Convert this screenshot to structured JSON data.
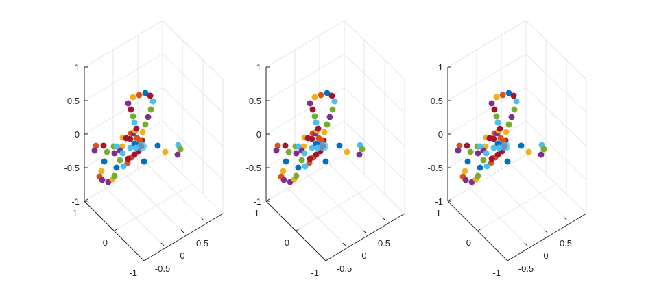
{
  "chart_data": [
    {
      "type": "scatter",
      "title": "",
      "xlabel": "",
      "ylabel": "",
      "zlabel": "",
      "z_ticks": [
        "1",
        "0.5",
        "0",
        "-0.5",
        "-1"
      ],
      "y_ticks": [
        "1",
        "0",
        "-1"
      ],
      "x_ticks": [
        "-0.5",
        "0",
        "0.5"
      ],
      "grid": true,
      "colors": [
        "#0072BD",
        "#D95319",
        "#EDB120",
        "#7E2F8E",
        "#77AC30",
        "#4DBEEE",
        "#A2142F"
      ],
      "points": [
        {
          "x": 110,
          "y": 113,
          "c": 1
        },
        {
          "x": 121,
          "y": 113,
          "c": 6
        },
        {
          "x": 108,
          "y": 120,
          "c": 3
        },
        {
          "x": 126,
          "y": 122,
          "c": 4
        },
        {
          "x": 136,
          "y": 114,
          "c": 4
        },
        {
          "x": 137,
          "y": 124,
          "c": 3
        },
        {
          "x": 148,
          "y": 114,
          "c": 2
        },
        {
          "x": 145,
          "y": 120,
          "c": 3
        },
        {
          "x": 122,
          "y": 136,
          "c": 0
        },
        {
          "x": 156,
          "y": 138,
          "c": 1
        },
        {
          "x": 180,
          "y": 136,
          "c": 0
        },
        {
          "x": 200,
          "y": 113,
          "c": 0
        },
        {
          "x": 211,
          "y": 122,
          "c": 2
        },
        {
          "x": 230,
          "y": 112,
          "c": 5
        },
        {
          "x": 233,
          "y": 118,
          "c": 4
        },
        {
          "x": 229,
          "y": 126,
          "c": 3
        },
        {
          "x": 149,
          "y": 124,
          "c": 5
        },
        {
          "x": 160,
          "y": 116,
          "c": 5
        },
        {
          "x": 162,
          "y": 130,
          "c": 1
        },
        {
          "x": 171,
          "y": 111,
          "c": 0
        },
        {
          "x": 172,
          "y": 121,
          "c": 6
        },
        {
          "x": 166,
          "y": 126,
          "c": 6
        },
        {
          "x": 157,
          "y": 132,
          "c": 6
        },
        {
          "x": 145,
          "y": 134,
          "c": 4
        },
        {
          "x": 150,
          "y": 143,
          "c": 5
        },
        {
          "x": 140,
          "y": 145,
          "c": 0
        },
        {
          "x": 118,
          "y": 150,
          "c": 2
        },
        {
          "x": 115,
          "y": 158,
          "c": 1
        },
        {
          "x": 119,
          "y": 163,
          "c": 3
        },
        {
          "x": 128,
          "y": 166,
          "c": 3
        },
        {
          "x": 134,
          "y": 162,
          "c": 2
        },
        {
          "x": 137,
          "y": 157,
          "c": 4
        },
        {
          "x": 149,
          "y": 101,
          "c": 2
        },
        {
          "x": 154,
          "y": 102,
          "c": 6
        },
        {
          "x": 160,
          "y": 103,
          "c": 6
        },
        {
          "x": 161,
          "y": 95,
          "c": 1
        },
        {
          "x": 166,
          "y": 110,
          "c": 0
        },
        {
          "x": 165,
          "y": 95,
          "c": 3
        },
        {
          "x": 167,
          "y": 91,
          "c": 2
        },
        {
          "x": 170,
          "y": 102,
          "c": 1
        },
        {
          "x": 177,
          "y": 105,
          "c": 6
        },
        {
          "x": 169,
          "y": 88,
          "c": 6
        },
        {
          "x": 166,
          "y": 79,
          "c": 5
        },
        {
          "x": 164,
          "y": 70,
          "c": 4
        },
        {
          "x": 161,
          "y": 60,
          "c": 6
        },
        {
          "x": 157,
          "y": 51,
          "c": 3
        },
        {
          "x": 164,
          "y": 42,
          "c": 2
        },
        {
          "x": 173,
          "y": 39,
          "c": 1
        },
        {
          "x": 182,
          "y": 36,
          "c": 0
        },
        {
          "x": 189,
          "y": 40,
          "c": 6
        },
        {
          "x": 193,
          "y": 48,
          "c": 5
        },
        {
          "x": 190,
          "y": 60,
          "c": 4
        },
        {
          "x": 186,
          "y": 71,
          "c": 3
        },
        {
          "x": 182,
          "y": 82,
          "c": 4
        },
        {
          "x": 178,
          "y": 93,
          "c": 2
        },
        {
          "x": 174,
          "y": 105,
          "c": 1
        },
        {
          "x": 168,
          "y": 116,
          "c": 5
        },
        {
          "x": 176,
          "y": 114,
          "c": 6
        },
        {
          "x": 140,
          "y": 114,
          "c": 5
        }
      ]
    },
    {
      "type": "scatter",
      "title": "",
      "xlabel": "",
      "ylabel": "",
      "zlabel": "",
      "z_ticks": [
        "1",
        "0.5",
        "0",
        "-0.5",
        "-1"
      ],
      "y_ticks": [
        "1",
        "0",
        "-1"
      ],
      "x_ticks": [
        "-0.5",
        "0",
        "0.5"
      ],
      "grid": true,
      "colors": [
        "#0072BD",
        "#D95319",
        "#EDB120",
        "#7E2F8E",
        "#77AC30",
        "#4DBEEE",
        "#A2142F"
      ],
      "points": [
        {
          "x": 110,
          "y": 113,
          "c": 1
        },
        {
          "x": 121,
          "y": 113,
          "c": 6
        },
        {
          "x": 108,
          "y": 120,
          "c": 3
        },
        {
          "x": 126,
          "y": 122,
          "c": 4
        },
        {
          "x": 136,
          "y": 114,
          "c": 4
        },
        {
          "x": 137,
          "y": 124,
          "c": 3
        },
        {
          "x": 148,
          "y": 114,
          "c": 2
        },
        {
          "x": 145,
          "y": 120,
          "c": 3
        },
        {
          "x": 122,
          "y": 136,
          "c": 0
        },
        {
          "x": 156,
          "y": 138,
          "c": 1
        },
        {
          "x": 180,
          "y": 136,
          "c": 0
        },
        {
          "x": 200,
          "y": 113,
          "c": 0
        },
        {
          "x": 211,
          "y": 122,
          "c": 2
        },
        {
          "x": 230,
          "y": 112,
          "c": 5
        },
        {
          "x": 233,
          "y": 118,
          "c": 4
        },
        {
          "x": 229,
          "y": 126,
          "c": 3
        },
        {
          "x": 149,
          "y": 124,
          "c": 5
        },
        {
          "x": 160,
          "y": 116,
          "c": 5
        },
        {
          "x": 162,
          "y": 130,
          "c": 1
        },
        {
          "x": 171,
          "y": 111,
          "c": 0
        },
        {
          "x": 172,
          "y": 121,
          "c": 6
        },
        {
          "x": 166,
          "y": 126,
          "c": 6
        },
        {
          "x": 157,
          "y": 132,
          "c": 6
        },
        {
          "x": 145,
          "y": 134,
          "c": 4
        },
        {
          "x": 150,
          "y": 143,
          "c": 5
        },
        {
          "x": 140,
          "y": 145,
          "c": 0
        },
        {
          "x": 118,
          "y": 150,
          "c": 2
        },
        {
          "x": 115,
          "y": 158,
          "c": 1
        },
        {
          "x": 119,
          "y": 163,
          "c": 3
        },
        {
          "x": 128,
          "y": 166,
          "c": 3
        },
        {
          "x": 134,
          "y": 162,
          "c": 2
        },
        {
          "x": 137,
          "y": 157,
          "c": 4
        },
        {
          "x": 149,
          "y": 101,
          "c": 2
        },
        {
          "x": 154,
          "y": 102,
          "c": 6
        },
        {
          "x": 160,
          "y": 103,
          "c": 6
        },
        {
          "x": 161,
          "y": 95,
          "c": 1
        },
        {
          "x": 166,
          "y": 110,
          "c": 0
        },
        {
          "x": 165,
          "y": 95,
          "c": 3
        },
        {
          "x": 167,
          "y": 91,
          "c": 2
        },
        {
          "x": 170,
          "y": 102,
          "c": 1
        },
        {
          "x": 177,
          "y": 105,
          "c": 6
        },
        {
          "x": 169,
          "y": 88,
          "c": 6
        },
        {
          "x": 166,
          "y": 79,
          "c": 5
        },
        {
          "x": 164,
          "y": 70,
          "c": 4
        },
        {
          "x": 161,
          "y": 60,
          "c": 6
        },
        {
          "x": 157,
          "y": 51,
          "c": 3
        },
        {
          "x": 164,
          "y": 42,
          "c": 2
        },
        {
          "x": 173,
          "y": 39,
          "c": 1
        },
        {
          "x": 182,
          "y": 36,
          "c": 0
        },
        {
          "x": 189,
          "y": 40,
          "c": 6
        },
        {
          "x": 193,
          "y": 48,
          "c": 5
        },
        {
          "x": 190,
          "y": 60,
          "c": 4
        },
        {
          "x": 186,
          "y": 71,
          "c": 3
        },
        {
          "x": 182,
          "y": 82,
          "c": 4
        },
        {
          "x": 178,
          "y": 93,
          "c": 2
        },
        {
          "x": 174,
          "y": 105,
          "c": 1
        },
        {
          "x": 168,
          "y": 116,
          "c": 5
        },
        {
          "x": 176,
          "y": 114,
          "c": 6
        },
        {
          "x": 140,
          "y": 114,
          "c": 5
        }
      ]
    },
    {
      "type": "scatter",
      "title": "",
      "xlabel": "",
      "ylabel": "",
      "zlabel": "",
      "z_ticks": [
        "1",
        "0.5",
        "0",
        "-0.5",
        "-1"
      ],
      "y_ticks": [
        "1",
        "0",
        "-1"
      ],
      "x_ticks": [
        "-0.5",
        "0",
        "0.5"
      ],
      "grid": true,
      "colors": [
        "#0072BD",
        "#D95319",
        "#EDB120",
        "#7E2F8E",
        "#77AC30",
        "#4DBEEE",
        "#A2142F"
      ],
      "points": [
        {
          "x": 110,
          "y": 113,
          "c": 1
        },
        {
          "x": 121,
          "y": 113,
          "c": 6
        },
        {
          "x": 108,
          "y": 120,
          "c": 3
        },
        {
          "x": 126,
          "y": 122,
          "c": 4
        },
        {
          "x": 136,
          "y": 114,
          "c": 4
        },
        {
          "x": 137,
          "y": 124,
          "c": 3
        },
        {
          "x": 148,
          "y": 114,
          "c": 2
        },
        {
          "x": 145,
          "y": 120,
          "c": 3
        },
        {
          "x": 122,
          "y": 136,
          "c": 0
        },
        {
          "x": 156,
          "y": 138,
          "c": 1
        },
        {
          "x": 180,
          "y": 136,
          "c": 0
        },
        {
          "x": 200,
          "y": 113,
          "c": 0
        },
        {
          "x": 211,
          "y": 122,
          "c": 2
        },
        {
          "x": 230,
          "y": 112,
          "c": 5
        },
        {
          "x": 233,
          "y": 118,
          "c": 4
        },
        {
          "x": 229,
          "y": 126,
          "c": 3
        },
        {
          "x": 149,
          "y": 124,
          "c": 5
        },
        {
          "x": 160,
          "y": 116,
          "c": 5
        },
        {
          "x": 162,
          "y": 130,
          "c": 1
        },
        {
          "x": 171,
          "y": 111,
          "c": 0
        },
        {
          "x": 172,
          "y": 121,
          "c": 6
        },
        {
          "x": 166,
          "y": 126,
          "c": 6
        },
        {
          "x": 157,
          "y": 132,
          "c": 6
        },
        {
          "x": 145,
          "y": 134,
          "c": 4
        },
        {
          "x": 150,
          "y": 143,
          "c": 5
        },
        {
          "x": 140,
          "y": 145,
          "c": 0
        },
        {
          "x": 118,
          "y": 150,
          "c": 2
        },
        {
          "x": 115,
          "y": 158,
          "c": 1
        },
        {
          "x": 119,
          "y": 163,
          "c": 3
        },
        {
          "x": 128,
          "y": 166,
          "c": 3
        },
        {
          "x": 134,
          "y": 162,
          "c": 2
        },
        {
          "x": 137,
          "y": 157,
          "c": 4
        },
        {
          "x": 149,
          "y": 101,
          "c": 2
        },
        {
          "x": 154,
          "y": 102,
          "c": 6
        },
        {
          "x": 160,
          "y": 103,
          "c": 6
        },
        {
          "x": 161,
          "y": 95,
          "c": 1
        },
        {
          "x": 166,
          "y": 110,
          "c": 0
        },
        {
          "x": 165,
          "y": 95,
          "c": 3
        },
        {
          "x": 167,
          "y": 91,
          "c": 2
        },
        {
          "x": 170,
          "y": 102,
          "c": 1
        },
        {
          "x": 177,
          "y": 105,
          "c": 6
        },
        {
          "x": 169,
          "y": 88,
          "c": 6
        },
        {
          "x": 166,
          "y": 79,
          "c": 5
        },
        {
          "x": 164,
          "y": 70,
          "c": 4
        },
        {
          "x": 161,
          "y": 60,
          "c": 6
        },
        {
          "x": 157,
          "y": 51,
          "c": 3
        },
        {
          "x": 164,
          "y": 42,
          "c": 2
        },
        {
          "x": 173,
          "y": 39,
          "c": 1
        },
        {
          "x": 182,
          "y": 36,
          "c": 0
        },
        {
          "x": 189,
          "y": 40,
          "c": 6
        },
        {
          "x": 193,
          "y": 48,
          "c": 5
        },
        {
          "x": 190,
          "y": 60,
          "c": 4
        },
        {
          "x": 186,
          "y": 71,
          "c": 3
        },
        {
          "x": 182,
          "y": 82,
          "c": 4
        },
        {
          "x": 178,
          "y": 93,
          "c": 2
        },
        {
          "x": 174,
          "y": 105,
          "c": 1
        },
        {
          "x": 168,
          "y": 116,
          "c": 5
        },
        {
          "x": 176,
          "y": 114,
          "c": 6
        },
        {
          "x": 140,
          "y": 114,
          "c": 5
        }
      ]
    }
  ]
}
